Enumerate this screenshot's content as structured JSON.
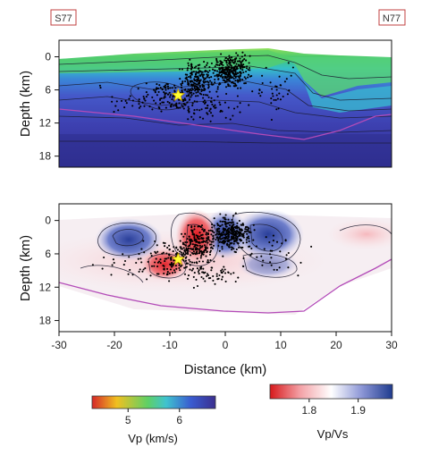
{
  "profile": {
    "left_label": "S77",
    "right_label": "N77"
  },
  "chart_data": [
    {
      "type": "heatmap",
      "panel": "Vp",
      "ylabel": "Depth (km)",
      "xlim": [
        -30,
        30
      ],
      "ylim": [
        20,
        -3
      ],
      "y_ticks": [
        0,
        6,
        12,
        18
      ],
      "grid": false,
      "mainshock": {
        "x": -8.5,
        "y": 7.0
      }
    },
    {
      "type": "heatmap",
      "panel": "Vp/Vs",
      "ylabel": "Depth (km)",
      "xlabel": "Distance (km)",
      "xlim": [
        -30,
        30
      ],
      "ylim": [
        20,
        -3
      ],
      "x_ticks": [
        -30,
        -20,
        -10,
        0,
        10,
        20,
        30
      ],
      "y_ticks": [
        0,
        6,
        12,
        18
      ],
      "grid": false,
      "mainshock": {
        "x": -8.5,
        "y": 7.0
      }
    }
  ],
  "colorbars": {
    "vp": {
      "label": "Vp (km/s)",
      "ticks": [
        5,
        6
      ],
      "range": [
        4.3,
        6.7
      ],
      "colors": [
        "#d62728",
        "#f0c020",
        "#5fd065",
        "#3fc3cf",
        "#3a5cd0",
        "#3b2f8f"
      ]
    },
    "vpvs": {
      "label": "Vp/Vs",
      "ticks": [
        1.8,
        1.9
      ],
      "range": [
        1.72,
        1.97
      ],
      "colors": [
        "#d7191c",
        "#f4a3a8",
        "#ffffff",
        "#8c96d6",
        "#1f3b8f"
      ]
    }
  }
}
